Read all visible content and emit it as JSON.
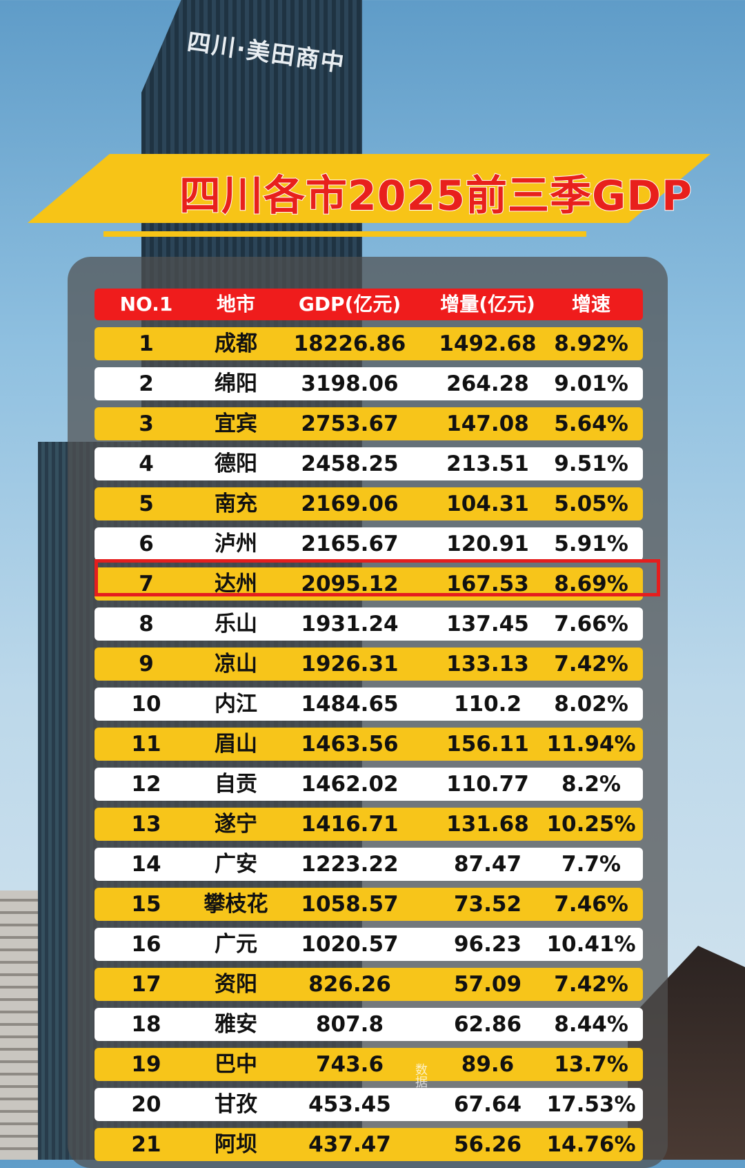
{
  "title": "四川各市2025前三季GDP",
  "tower_sign": "四川·美田商中",
  "watermark": "数据山河",
  "chart_data": {
    "type": "table",
    "title": "四川各市2025前三季GDP",
    "columns": [
      "NO.1",
      "地市",
      "GDP(亿元)",
      "增量(亿元)",
      "增速"
    ],
    "rows": [
      {
        "rank": "1",
        "city": "成都",
        "gdp": "18226.86",
        "increase": "1492.68",
        "rate": "8.92%"
      },
      {
        "rank": "2",
        "city": "绵阳",
        "gdp": "3198.06",
        "increase": "264.28",
        "rate": "9.01%"
      },
      {
        "rank": "3",
        "city": "宜宾",
        "gdp": "2753.67",
        "increase": "147.08",
        "rate": "5.64%"
      },
      {
        "rank": "4",
        "city": "德阳",
        "gdp": "2458.25",
        "increase": "213.51",
        "rate": "9.51%"
      },
      {
        "rank": "5",
        "city": "南充",
        "gdp": "2169.06",
        "increase": "104.31",
        "rate": "5.05%"
      },
      {
        "rank": "6",
        "city": "泸州",
        "gdp": "2165.67",
        "increase": "120.91",
        "rate": "5.91%"
      },
      {
        "rank": "7",
        "city": "达州",
        "gdp": "2095.12",
        "increase": "167.53",
        "rate": "8.69%"
      },
      {
        "rank": "8",
        "city": "乐山",
        "gdp": "1931.24",
        "increase": "137.45",
        "rate": "7.66%"
      },
      {
        "rank": "9",
        "city": "凉山",
        "gdp": "1926.31",
        "increase": "133.13",
        "rate": "7.42%"
      },
      {
        "rank": "10",
        "city": "内江",
        "gdp": "1484.65",
        "increase": "110.2",
        "rate": "8.02%"
      },
      {
        "rank": "11",
        "city": "眉山",
        "gdp": "1463.56",
        "increase": "156.11",
        "rate": "11.94%"
      },
      {
        "rank": "12",
        "city": "自贡",
        "gdp": "1462.02",
        "increase": "110.77",
        "rate": "8.2%"
      },
      {
        "rank": "13",
        "city": "遂宁",
        "gdp": "1416.71",
        "increase": "131.68",
        "rate": "10.25%"
      },
      {
        "rank": "14",
        "city": "广安",
        "gdp": "1223.22",
        "increase": "87.47",
        "rate": "7.7%"
      },
      {
        "rank": "15",
        "city": "攀枝花",
        "gdp": "1058.57",
        "increase": "73.52",
        "rate": "7.46%"
      },
      {
        "rank": "16",
        "city": "广元",
        "gdp": "1020.57",
        "increase": "96.23",
        "rate": "10.41%"
      },
      {
        "rank": "17",
        "city": "资阳",
        "gdp": "826.26",
        "increase": "57.09",
        "rate": "7.42%"
      },
      {
        "rank": "18",
        "city": "雅安",
        "gdp": "807.8",
        "increase": "62.86",
        "rate": "8.44%"
      },
      {
        "rank": "19",
        "city": "巴中",
        "gdp": "743.6",
        "increase": "89.6",
        "rate": "13.7%"
      },
      {
        "rank": "20",
        "city": "甘孜",
        "gdp": "453.45",
        "increase": "67.64",
        "rate": "17.53%"
      },
      {
        "rank": "21",
        "city": "阿坝",
        "gdp": "437.47",
        "increase": "56.26",
        "rate": "14.76%"
      }
    ],
    "highlighted_rank": "7",
    "colors": {
      "header": "#ef1c1c",
      "odd_row": "#f7c51a",
      "even_row": "#ffffff",
      "highlight": "#e51e1e",
      "title": "#e8201c"
    }
  }
}
